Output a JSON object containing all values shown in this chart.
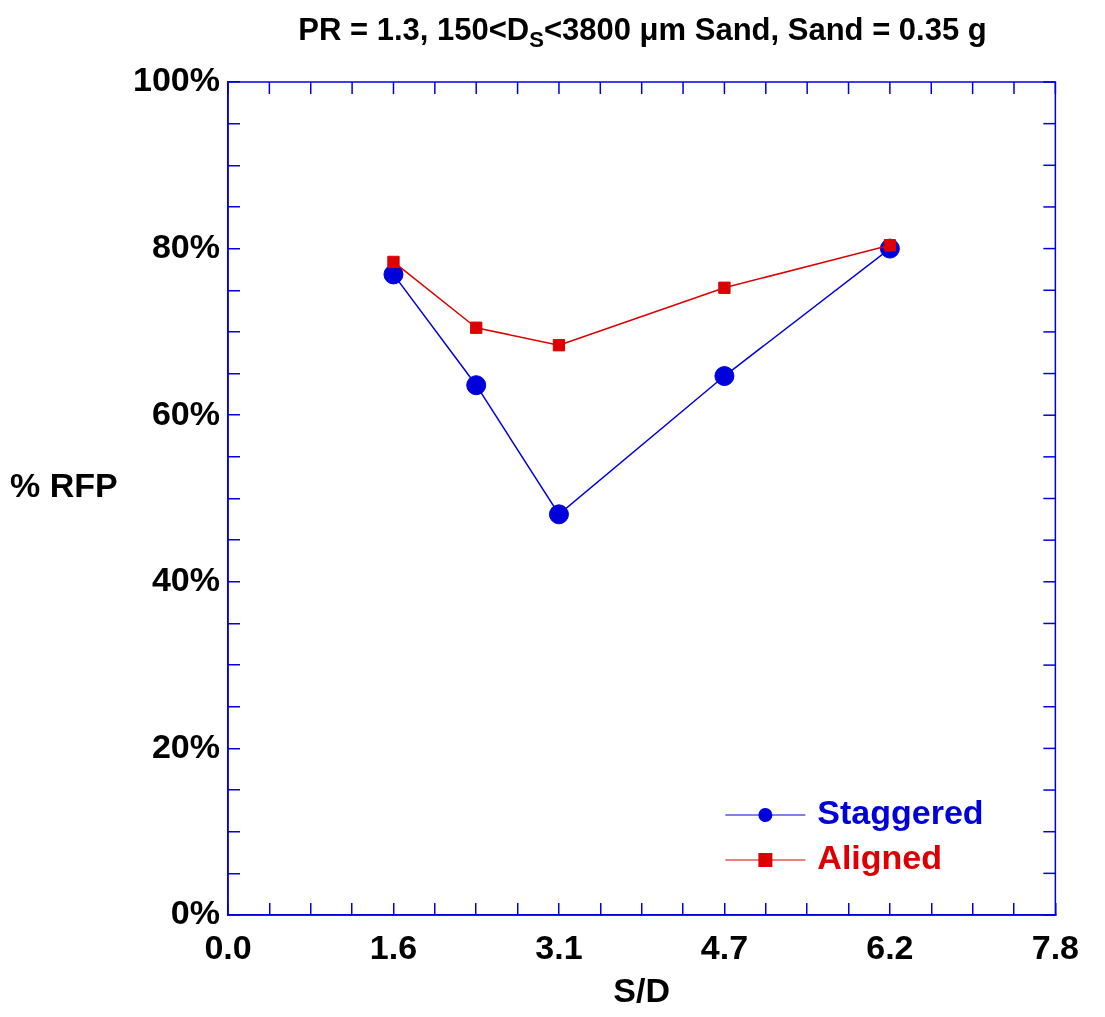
{
  "chart_data": {
    "type": "line",
    "title": "PR = 1.3, 150<D$_{S}$<3800 μm Sand, Sand = 0.35 g",
    "xlabel": "S/D",
    "ylabel": "% RFP",
    "series": [
      {
        "name": "Staggered",
        "color": "#0000dd",
        "marker": "circle",
        "x": [
          1.56,
          2.34,
          3.12,
          4.68,
          6.24
        ],
        "values": [
          76.9,
          63.6,
          48.1,
          64.7,
          80.0
        ]
      },
      {
        "name": "Aligned",
        "color": "#dd0000",
        "marker": "square",
        "x": [
          1.56,
          2.34,
          3.12,
          4.68,
          6.24
        ],
        "values": [
          78.4,
          70.5,
          68.4,
          75.3,
          80.4
        ]
      }
    ],
    "xlim": [
      0,
      7.8
    ],
    "xticks": [
      {
        "value": 0,
        "label": "0.0"
      },
      {
        "value": 0.39,
        "label": null
      },
      {
        "value": 0.78,
        "label": null
      },
      {
        "value": 1.17,
        "label": null
      },
      {
        "value": 1.56,
        "label": "1.6"
      },
      {
        "value": 1.95,
        "label": null
      },
      {
        "value": 2.34,
        "label": null
      },
      {
        "value": 2.73,
        "label": null
      },
      {
        "value": 3.12,
        "label": "3.1"
      },
      {
        "value": 3.51,
        "label": null
      },
      {
        "value": 3.9,
        "label": null
      },
      {
        "value": 4.29,
        "label": null
      },
      {
        "value": 4.68,
        "label": "4.7"
      },
      {
        "value": 5.07,
        "label": null
      },
      {
        "value": 5.46,
        "label": null
      },
      {
        "value": 5.85,
        "label": null
      },
      {
        "value": 6.24,
        "label": "6.2"
      },
      {
        "value": 6.63,
        "label": null
      },
      {
        "value": 7.02,
        "label": null
      },
      {
        "value": 7.41,
        "label": null
      },
      {
        "value": 7.8,
        "label": "7.8"
      }
    ],
    "ylim": [
      0,
      100
    ],
    "yticks": [
      {
        "value": 0,
        "label": "0%"
      },
      {
        "value": 5,
        "label": null
      },
      {
        "value": 10,
        "label": null
      },
      {
        "value": 15,
        "label": null
      },
      {
        "value": 20,
        "label": "20%"
      },
      {
        "value": 25,
        "label": null
      },
      {
        "value": 30,
        "label": null
      },
      {
        "value": 35,
        "label": null
      },
      {
        "value": 40,
        "label": "40%"
      },
      {
        "value": 45,
        "label": null
      },
      {
        "value": 50,
        "label": null
      },
      {
        "value": 55,
        "label": null
      },
      {
        "value": 60,
        "label": "60%"
      },
      {
        "value": 65,
        "label": null
      },
      {
        "value": 70,
        "label": null
      },
      {
        "value": 75,
        "label": null
      },
      {
        "value": 80,
        "label": "80%"
      },
      {
        "value": 85,
        "label": null
      },
      {
        "value": 90,
        "label": null
      },
      {
        "value": 95,
        "label": null
      },
      {
        "value": 100,
        "label": "100%"
      }
    ],
    "grid": false,
    "legend": "bottom right",
    "line_style": "solid"
  }
}
